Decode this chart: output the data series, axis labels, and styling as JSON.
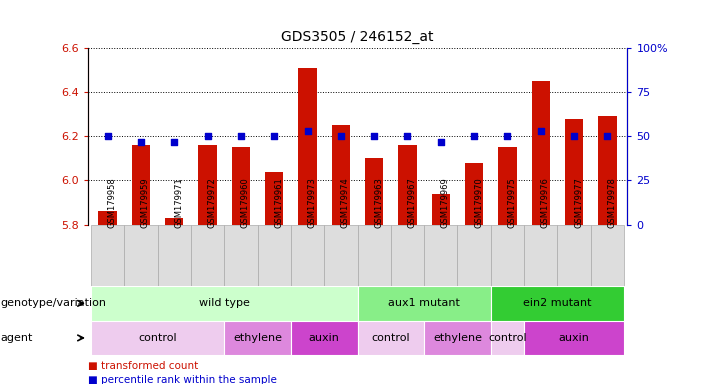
{
  "title": "GDS3505 / 246152_at",
  "samples": [
    "GSM179958",
    "GSM179959",
    "GSM179971",
    "GSM179972",
    "GSM179960",
    "GSM179961",
    "GSM179973",
    "GSM179974",
    "GSM179963",
    "GSM179967",
    "GSM179969",
    "GSM179970",
    "GSM179975",
    "GSM179976",
    "GSM179977",
    "GSM179978"
  ],
  "bar_values": [
    5.86,
    6.16,
    5.83,
    6.16,
    6.15,
    6.04,
    6.51,
    6.25,
    6.1,
    6.16,
    5.94,
    6.08,
    6.15,
    6.45,
    6.28,
    6.29
  ],
  "dot_values": [
    50,
    47,
    47,
    50,
    50,
    50,
    53,
    50,
    50,
    50,
    47,
    50,
    50,
    53,
    50,
    50
  ],
  "ymin": 5.8,
  "ymax": 6.6,
  "y2min": 0,
  "y2max": 100,
  "yticks": [
    5.8,
    6.0,
    6.2,
    6.4,
    6.6
  ],
  "y2ticks": [
    0,
    25,
    50,
    75,
    100
  ],
  "y2ticklabels": [
    "0",
    "25",
    "50",
    "75",
    "100%"
  ],
  "bar_color": "#CC1100",
  "dot_color": "#0000CC",
  "bar_base": 5.8,
  "genotype_groups": [
    {
      "label": "wild type",
      "start": 0,
      "end": 7,
      "color": "#CCFFCC"
    },
    {
      "label": "aux1 mutant",
      "start": 8,
      "end": 11,
      "color": "#88EE88"
    },
    {
      "label": "ein2 mutant",
      "start": 12,
      "end": 15,
      "color": "#33CC33"
    }
  ],
  "agent_groups": [
    {
      "label": "control",
      "start": 0,
      "end": 3,
      "color": "#EECCEE"
    },
    {
      "label": "ethylene",
      "start": 4,
      "end": 5,
      "color": "#DD88DD"
    },
    {
      "label": "auxin",
      "start": 6,
      "end": 7,
      "color": "#CC44CC"
    },
    {
      "label": "control",
      "start": 8,
      "end": 9,
      "color": "#EECCEE"
    },
    {
      "label": "ethylene",
      "start": 10,
      "end": 11,
      "color": "#DD88DD"
    },
    {
      "label": "control",
      "start": 12,
      "end": 12,
      "color": "#EECCEE"
    },
    {
      "label": "auxin",
      "start": 13,
      "end": 15,
      "color": "#CC44CC"
    }
  ],
  "legend_items": [
    {
      "label": "transformed count",
      "color": "#CC1100"
    },
    {
      "label": "percentile rank within the sample",
      "color": "#0000CC"
    }
  ],
  "xlabel_left": "genotype/variation",
  "xlabel_left2": "agent",
  "background_color": "#FFFFFF",
  "tick_color_left": "#CC1100",
  "tick_color_right": "#0000CC",
  "sample_bg_color": "#DDDDDD",
  "sample_border_color": "#AAAAAA"
}
